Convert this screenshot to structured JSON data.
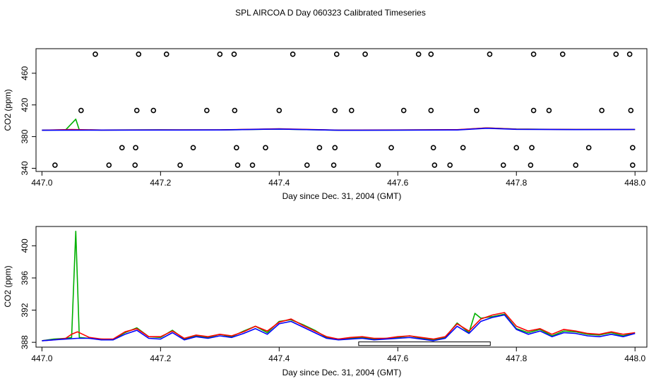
{
  "title": "SPL AIRCOA D  Day 060323  Calibrated Timeseries",
  "chart_data": [
    {
      "type": "line",
      "panel": "top",
      "xlabel": "Day since Dec. 31, 2004 (GMT)",
      "ylabel": "CO2 (ppm)",
      "xlim": [
        446.99,
        448.02
      ],
      "ylim": [
        336,
        491
      ],
      "xticks": [
        447.0,
        447.2,
        447.4,
        447.6,
        447.8,
        448.0
      ],
      "xtick_labels": [
        "447.0",
        "447.2",
        "447.4",
        "447.6",
        "447.8",
        "448.0"
      ],
      "yticks": [
        340,
        380,
        420,
        460
      ],
      "ytick_labels": [
        "340",
        "380",
        "420",
        "460"
      ],
      "series": [
        {
          "name": "green",
          "color": "#00b000",
          "x": [
            447.0,
            447.04,
            447.057,
            447.063,
            447.1,
            447.2,
            447.3,
            447.4,
            447.5,
            447.6,
            447.7,
            447.75,
            447.8,
            447.9,
            448.0
          ],
          "y": [
            388,
            388.5,
            402,
            388.5,
            388.3,
            388.5,
            388.4,
            389.5,
            388,
            388.3,
            388.6,
            391,
            389.5,
            389,
            389
          ]
        },
        {
          "name": "red",
          "color": "#ff0000",
          "x": [
            447.0,
            447.05,
            447.1,
            447.2,
            447.3,
            447.4,
            447.5,
            447.6,
            447.7,
            447.75,
            447.8,
            447.9,
            448.0
          ],
          "y": [
            388,
            389,
            388.3,
            388.6,
            388.5,
            389.8,
            388.2,
            388.4,
            388.7,
            391,
            389.4,
            389,
            389
          ]
        },
        {
          "name": "blue",
          "color": "#0000ff",
          "x": [
            447.0,
            447.1,
            447.2,
            447.3,
            447.4,
            447.5,
            447.6,
            447.7,
            447.75,
            447.8,
            447.9,
            448.0
          ],
          "y": [
            388,
            388.2,
            388.3,
            388.4,
            389.5,
            388,
            388.2,
            388.4,
            390.5,
            389.2,
            388.8,
            389
          ]
        }
      ],
      "points": [
        {
          "x": 447.09,
          "y": 484
        },
        {
          "x": 447.163,
          "y": 484
        },
        {
          "x": 447.21,
          "y": 484
        },
        {
          "x": 447.3,
          "y": 484
        },
        {
          "x": 447.324,
          "y": 484
        },
        {
          "x": 447.423,
          "y": 484
        },
        {
          "x": 447.497,
          "y": 484
        },
        {
          "x": 447.545,
          "y": 484
        },
        {
          "x": 447.635,
          "y": 484
        },
        {
          "x": 447.656,
          "y": 484
        },
        {
          "x": 447.755,
          "y": 484
        },
        {
          "x": 447.829,
          "y": 484
        },
        {
          "x": 447.878,
          "y": 484
        },
        {
          "x": 447.968,
          "y": 484
        },
        {
          "x": 447.991,
          "y": 484
        },
        {
          "x": 447.066,
          "y": 413
        },
        {
          "x": 447.16,
          "y": 413
        },
        {
          "x": 447.188,
          "y": 413
        },
        {
          "x": 447.278,
          "y": 413
        },
        {
          "x": 447.325,
          "y": 413
        },
        {
          "x": 447.4,
          "y": 413
        },
        {
          "x": 447.494,
          "y": 413
        },
        {
          "x": 447.522,
          "y": 413
        },
        {
          "x": 447.61,
          "y": 413
        },
        {
          "x": 447.656,
          "y": 413
        },
        {
          "x": 447.733,
          "y": 413
        },
        {
          "x": 447.829,
          "y": 413
        },
        {
          "x": 447.855,
          "y": 413
        },
        {
          "x": 447.944,
          "y": 413
        },
        {
          "x": 447.993,
          "y": 413
        },
        {
          "x": 447.135,
          "y": 366
        },
        {
          "x": 447.158,
          "y": 366
        },
        {
          "x": 447.255,
          "y": 366
        },
        {
          "x": 447.328,
          "y": 366
        },
        {
          "x": 447.377,
          "y": 366
        },
        {
          "x": 447.468,
          "y": 366
        },
        {
          "x": 447.494,
          "y": 366
        },
        {
          "x": 447.589,
          "y": 366
        },
        {
          "x": 447.66,
          "y": 366
        },
        {
          "x": 447.71,
          "y": 366
        },
        {
          "x": 447.8,
          "y": 366
        },
        {
          "x": 447.826,
          "y": 366
        },
        {
          "x": 447.922,
          "y": 366
        },
        {
          "x": 447.996,
          "y": 366
        },
        {
          "x": 447.022,
          "y": 344
        },
        {
          "x": 447.113,
          "y": 344
        },
        {
          "x": 447.157,
          "y": 344
        },
        {
          "x": 447.233,
          "y": 344
        },
        {
          "x": 447.33,
          "y": 344
        },
        {
          "x": 447.355,
          "y": 344
        },
        {
          "x": 447.447,
          "y": 344
        },
        {
          "x": 447.492,
          "y": 344
        },
        {
          "x": 447.567,
          "y": 344
        },
        {
          "x": 447.662,
          "y": 344
        },
        {
          "x": 447.688,
          "y": 344
        },
        {
          "x": 447.778,
          "y": 344
        },
        {
          "x": 447.824,
          "y": 344
        },
        {
          "x": 447.9,
          "y": 344
        },
        {
          "x": 447.996,
          "y": 344
        }
      ]
    },
    {
      "type": "line",
      "panel": "bottom",
      "xlabel": "Day since Dec. 31, 2004 (GMT)",
      "ylabel": "CO2 (ppm)",
      "xlim": [
        446.99,
        448.02
      ],
      "ylim": [
        387.4,
        402.4
      ],
      "xticks": [
        447.0,
        447.2,
        447.4,
        447.6,
        447.8,
        448.0
      ],
      "xtick_labels": [
        "447.0",
        "447.2",
        "447.4",
        "447.6",
        "447.8",
        "448.0"
      ],
      "yticks": [
        388,
        392,
        396,
        400
      ],
      "ytick_labels": [
        "388",
        "392",
        "396",
        "400"
      ],
      "baseline_box": {
        "x_start": 447.534,
        "x_end": 447.756,
        "y_low": 387.6,
        "y_high": 388.05
      },
      "series": [
        {
          "name": "green",
          "color": "#00b000",
          "x": [
            447.0,
            447.02,
            447.04,
            447.05,
            447.057,
            447.063,
            447.08,
            447.1,
            447.12,
            447.14,
            447.16,
            447.18,
            447.2,
            447.22,
            447.24,
            447.26,
            447.28,
            447.3,
            447.32,
            447.34,
            447.36,
            447.38,
            447.4,
            447.42,
            447.44,
            447.46,
            447.48,
            447.5,
            447.52,
            447.54,
            447.56,
            447.58,
            447.6,
            447.62,
            447.64,
            447.66,
            447.68,
            447.7,
            447.72,
            447.73,
            447.74,
            447.76,
            447.78,
            447.8,
            447.82,
            447.84,
            447.86,
            447.88,
            447.9,
            447.92,
            447.94,
            447.96,
            447.98,
            448.0
          ],
          "y": [
            388.2,
            388.4,
            388.5,
            388.6,
            401.8,
            388.6,
            388.5,
            388.4,
            388.3,
            389.2,
            389.8,
            388.7,
            388.6,
            389.5,
            388.4,
            388.8,
            388.6,
            389.0,
            388.7,
            389.4,
            390.0,
            389.2,
            390.6,
            390.8,
            390.2,
            389.5,
            388.6,
            388.4,
            388.5,
            388.6,
            388.4,
            388.5,
            388.6,
            388.8,
            388.5,
            388.3,
            388.6,
            390.4,
            389.2,
            391.6,
            391.0,
            391.2,
            391.5,
            389.7,
            389.2,
            389.6,
            388.8,
            389.4,
            389.3,
            389.0,
            388.9,
            389.2,
            388.8,
            389.2
          ]
        },
        {
          "name": "red",
          "color": "#ff0000",
          "x": [
            447.0,
            447.02,
            447.04,
            447.05,
            447.06,
            447.08,
            447.1,
            447.12,
            447.14,
            447.16,
            447.18,
            447.2,
            447.22,
            447.24,
            447.26,
            447.28,
            447.3,
            447.32,
            447.34,
            447.36,
            447.38,
            447.4,
            447.42,
            447.44,
            447.46,
            447.48,
            447.5,
            447.52,
            447.54,
            447.56,
            447.58,
            447.6,
            447.62,
            447.64,
            447.66,
            447.68,
            447.7,
            447.72,
            447.74,
            447.76,
            447.78,
            447.8,
            447.82,
            447.84,
            447.86,
            447.88,
            447.9,
            447.92,
            447.94,
            447.96,
            447.98,
            448.0
          ],
          "y": [
            388.2,
            388.3,
            388.5,
            389.0,
            389.3,
            388.6,
            388.4,
            388.4,
            389.3,
            389.7,
            388.7,
            388.7,
            389.4,
            388.5,
            388.9,
            388.7,
            389.0,
            388.8,
            389.3,
            390.0,
            389.4,
            390.5,
            390.9,
            390.1,
            389.4,
            388.7,
            388.4,
            388.6,
            388.7,
            388.5,
            388.5,
            388.7,
            388.8,
            388.6,
            388.4,
            388.7,
            390.3,
            389.4,
            390.9,
            391.4,
            391.7,
            390.0,
            389.4,
            389.7,
            389.0,
            389.6,
            389.4,
            389.1,
            389.0,
            389.3,
            389.0,
            389.2
          ]
        },
        {
          "name": "blue",
          "color": "#0000ff",
          "x": [
            447.0,
            447.02,
            447.04,
            447.06,
            447.08,
            447.1,
            447.12,
            447.14,
            447.16,
            447.18,
            447.2,
            447.22,
            447.24,
            447.26,
            447.28,
            447.3,
            447.32,
            447.34,
            447.36,
            447.38,
            447.4,
            447.42,
            447.44,
            447.46,
            447.48,
            447.5,
            447.52,
            447.54,
            447.56,
            447.58,
            447.6,
            447.62,
            447.64,
            447.66,
            447.68,
            447.7,
            447.72,
            447.74,
            447.76,
            447.78,
            447.8,
            447.82,
            447.84,
            447.86,
            447.88,
            447.9,
            447.92,
            447.94,
            447.96,
            447.98,
            448.0
          ],
          "y": [
            388.2,
            388.3,
            388.4,
            388.5,
            388.5,
            388.3,
            388.3,
            389.0,
            389.5,
            388.5,
            388.4,
            389.2,
            388.3,
            388.7,
            388.5,
            388.8,
            388.6,
            389.1,
            389.7,
            389.0,
            390.3,
            390.6,
            389.9,
            389.2,
            388.5,
            388.3,
            388.4,
            388.5,
            388.3,
            388.4,
            388.5,
            388.6,
            388.4,
            388.2,
            388.5,
            390.0,
            389.1,
            390.6,
            391.1,
            391.4,
            389.6,
            389.0,
            389.4,
            388.7,
            389.2,
            389.1,
            388.8,
            388.7,
            389.0,
            388.7,
            389.1
          ]
        }
      ]
    }
  ]
}
